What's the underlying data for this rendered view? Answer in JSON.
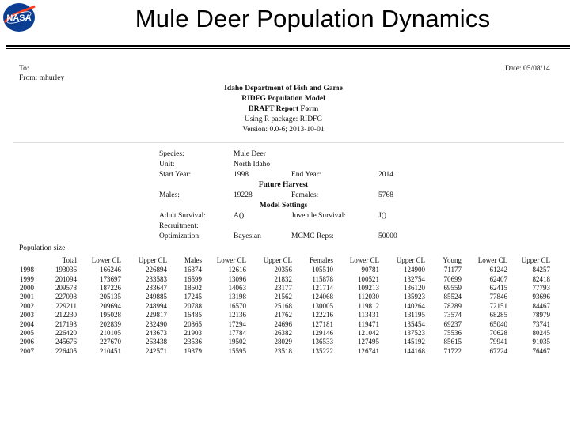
{
  "slide_title": "Mule Deer Population Dynamics",
  "logo_text": "NASA",
  "memo": {
    "to": "To:",
    "from": "From: mhurley",
    "date": "Date: 05/08/14"
  },
  "report_header": [
    "Idaho Department of Fish and Game",
    "RIDFG Population Model",
    "DRAFT Report Form",
    "Using R package: RIDFG",
    "Version: 0.0-6; 2013-10-01"
  ],
  "info": {
    "species_label": "Species:",
    "species_value": "Mule Deer",
    "unit_label": "Unit:",
    "unit_value": "North Idaho",
    "start_label": "Start Year:",
    "start_value": "1998",
    "end_label": "End Year:",
    "end_value": "2014",
    "future_harvest": "Future Harvest",
    "males_label": "Males:",
    "males_value": "19228",
    "females_label": "Females:",
    "females_value": "5768",
    "model_settings": "Model Settings",
    "adult_label": "Adult Survival:",
    "adult_value": "A()",
    "juvenile_label": "Juvenile Survival:",
    "juvenile_value": "J()",
    "recruitment_label": "Recruitment:",
    "optimization_label": "Optimization:",
    "optimization_value": "Bayesian",
    "mcmc_label": "MCMC Reps:",
    "mcmc_value": "50000"
  },
  "population": {
    "label": "Population size",
    "columns": [
      "",
      "Total",
      "Lower CL",
      "Upper CL",
      "Males",
      "Lower CL",
      "Upper CL",
      "Females",
      "Lower CL",
      "Upper CL",
      "Young",
      "Lower CL",
      "Upper CL"
    ],
    "rows": [
      [
        "1998",
        "193036",
        "166246",
        "226894",
        "16374",
        "12616",
        "20356",
        "105510",
        "90781",
        "124900",
        "71177",
        "61242",
        "84257"
      ],
      [
        "1999",
        "201094",
        "173697",
        "233583",
        "16599",
        "13096",
        "21832",
        "115878",
        "100521",
        "132754",
        "70699",
        "62407",
        "82418"
      ],
      [
        "2000",
        "209578",
        "187226",
        "233647",
        "18602",
        "14063",
        "23177",
        "121714",
        "109213",
        "136120",
        "69559",
        "62415",
        "77793"
      ],
      [
        "2001",
        "227098",
        "205135",
        "249885",
        "17245",
        "13198",
        "21562",
        "124068",
        "112030",
        "135923",
        "85524",
        "77846",
        "93696"
      ],
      [
        "2002",
        "229211",
        "209694",
        "248994",
        "20788",
        "16570",
        "25168",
        "130005",
        "119812",
        "140264",
        "78289",
        "72151",
        "84467"
      ],
      [
        "2003",
        "212230",
        "195028",
        "229817",
        "16485",
        "12136",
        "21762",
        "122216",
        "113431",
        "131195",
        "73574",
        "68285",
        "78979"
      ],
      [
        "2004",
        "217193",
        "202839",
        "232490",
        "20865",
        "17294",
        "24696",
        "127181",
        "119471",
        "135454",
        "69237",
        "65040",
        "73741"
      ],
      [
        "2005",
        "226420",
        "210105",
        "243673",
        "21903",
        "17784",
        "26382",
        "129146",
        "121042",
        "137523",
        "75536",
        "70628",
        "80245"
      ],
      [
        "2006",
        "245676",
        "227670",
        "263438",
        "23536",
        "19502",
        "28029",
        "136533",
        "127495",
        "145192",
        "85615",
        "79941",
        "91035"
      ],
      [
        "2007",
        "226405",
        "210451",
        "242571",
        "19379",
        "15595",
        "23518",
        "135222",
        "126741",
        "144168",
        "71722",
        "67224",
        "76467"
      ]
    ]
  }
}
